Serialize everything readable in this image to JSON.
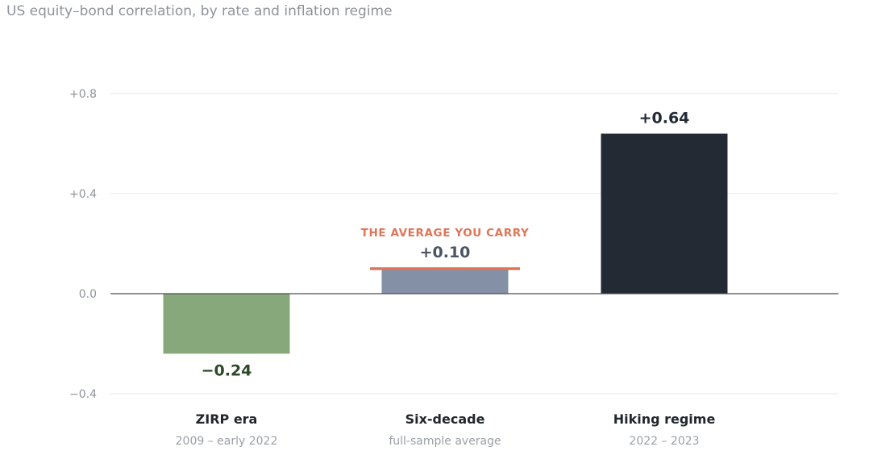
{
  "chart_data": {
    "type": "bar",
    "title": "US equity–bond correlation, by rate and inflation regime",
    "xlabel": "",
    "ylabel": "",
    "ylim": [
      -0.4,
      0.8
    ],
    "yticks": [
      {
        "value": 0.8,
        "label": "+0.8"
      },
      {
        "value": 0.4,
        "label": "+0.4"
      },
      {
        "value": 0.0,
        "label": "0.0"
      },
      {
        "value": -0.4,
        "label": "−0.4"
      }
    ],
    "grid": true,
    "legend": "none",
    "categories": [
      "ZIRP era",
      "Six-decade",
      "Hiking regime"
    ],
    "subtitles": [
      "2009 – early 2022",
      "full-sample average",
      "2022 – 2023"
    ],
    "values": [
      -0.24,
      0.1,
      0.64
    ],
    "value_labels": [
      "−0.24",
      "+0.10",
      "+0.64"
    ],
    "bar_colors": [
      "#86a87b",
      "#8490a6",
      "#232a33"
    ],
    "label_colors": [
      "#2d4a28",
      "#4a5466",
      "#232a33"
    ],
    "annotation": {
      "text": "THE AVERAGE YOU CARRY",
      "category_index": 1,
      "color": "#e07457"
    }
  }
}
